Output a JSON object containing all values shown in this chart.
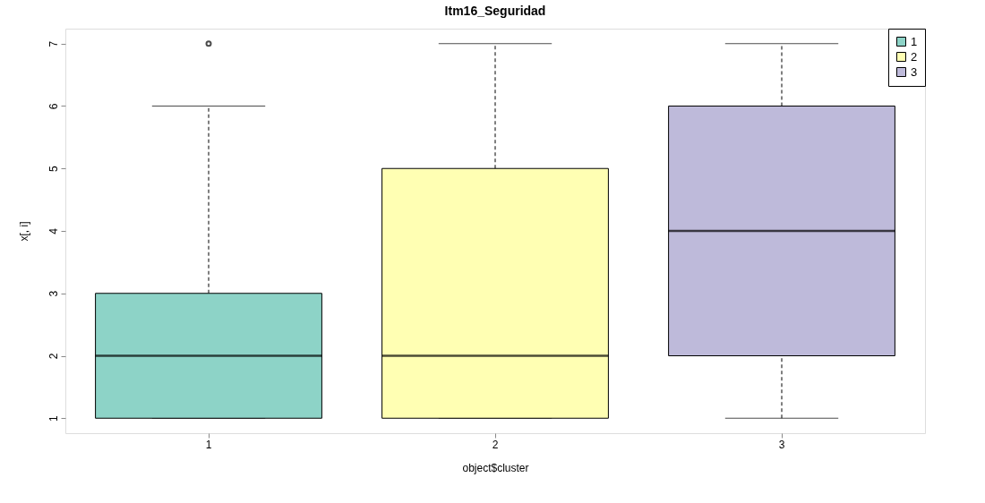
{
  "chart_data": {
    "type": "box",
    "title": "Itm16_Seguridad",
    "xlabel": "object$cluster",
    "ylabel": "x[, i]",
    "categories": [
      "1",
      "2",
      "3"
    ],
    "series": [
      {
        "name": "1",
        "color": "#8dd3c7",
        "boxes": [
          {
            "low": 1,
            "q1": 1,
            "median": 2,
            "q3": 3,
            "high": 6,
            "outliers": [
              7
            ]
          },
          null,
          null
        ]
      },
      {
        "name": "2",
        "color": "#ffffb3",
        "boxes": [
          null,
          {
            "low": 1,
            "q1": 1,
            "median": 2,
            "q3": 5,
            "high": 7
          },
          null
        ]
      },
      {
        "name": "3",
        "color": "#bebada",
        "boxes": [
          null,
          null,
          {
            "low": 1,
            "q1": 2,
            "median": 4,
            "q3": 6,
            "high": 7
          }
        ]
      }
    ],
    "ylim": [
      0.76,
      7.24
    ],
    "yticks": [
      1,
      2,
      3,
      4,
      5,
      6,
      7
    ],
    "grid": false,
    "legend": "top right",
    "line_style": "dashed"
  }
}
